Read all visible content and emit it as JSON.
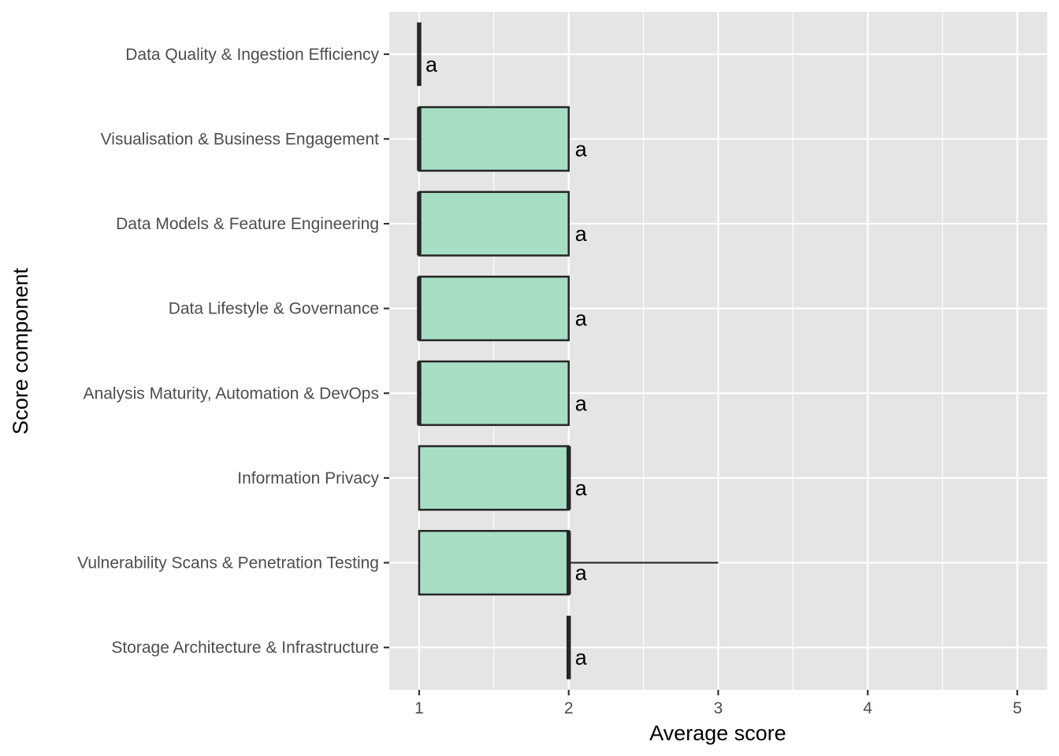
{
  "chart_data": {
    "type": "bar",
    "orientation": "horizontal",
    "xlabel": "Average score",
    "ylabel": "Score component",
    "xlim": [
      0.8,
      5.2
    ],
    "x_ticks": [
      "1",
      "2",
      "3",
      "4",
      "5"
    ],
    "grid": true,
    "categories": [
      "Data Quality & Ingestion Efficiency",
      "Visualisation & Business Engagement",
      "Data Models & Feature Engineering",
      "Data Lifestyle & Governance",
      "Analysis Maturity, Automation & DevOps",
      "Information Privacy",
      "Vulnerability Scans & Penetration Testing",
      "Storage Architecture & Infrastructure"
    ],
    "bars": [
      {
        "start": 1,
        "end": 1,
        "median": 1,
        "whisker_high": 1,
        "label": "a"
      },
      {
        "start": 1,
        "end": 2,
        "median": 1,
        "whisker_high": 2,
        "label": "a"
      },
      {
        "start": 1,
        "end": 2,
        "median": 1,
        "whisker_high": 2,
        "label": "a"
      },
      {
        "start": 1,
        "end": 2,
        "median": 1,
        "whisker_high": 2,
        "label": "a"
      },
      {
        "start": 1,
        "end": 2,
        "median": 1,
        "whisker_high": 2,
        "label": "a"
      },
      {
        "start": 1,
        "end": 2,
        "median": 2,
        "whisker_high": 2,
        "label": "a"
      },
      {
        "start": 1,
        "end": 2,
        "median": 2,
        "whisker_high": 3,
        "label": "a"
      },
      {
        "start": 2,
        "end": 2,
        "median": 2,
        "whisker_high": 2,
        "label": "a"
      }
    ],
    "colors": {
      "panel": "#e5e5e5",
      "grid": "#ffffff",
      "fill": "#a6dec4",
      "stroke": "#262626",
      "tick_text": "#4d4d4d"
    }
  }
}
